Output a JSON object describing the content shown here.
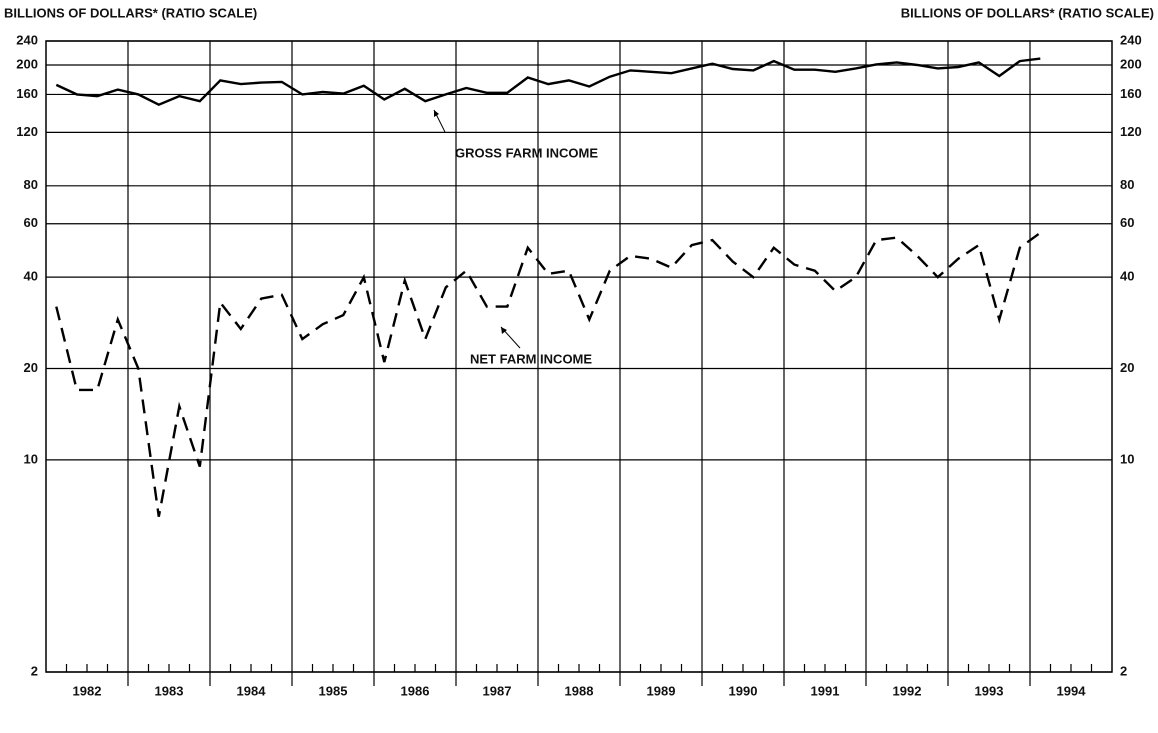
{
  "chart_data": {
    "type": "line",
    "y_label": "BILLIONS OF DOLLARS* (RATIO SCALE)",
    "y2_label": "BILLIONS OF DOLLARS* (RATIO SCALE)",
    "log_scale": true,
    "grid": true,
    "ylim": [
      2,
      240
    ],
    "yticks": [
      2,
      10,
      20,
      40,
      60,
      80,
      120,
      160,
      200,
      240
    ],
    "year_labels": [
      "1982",
      "1983",
      "1984",
      "1985",
      "1986",
      "1987",
      "1988",
      "1989",
      "1990",
      "1991",
      "1992",
      "1993",
      "1994"
    ],
    "categories": [
      null,
      null,
      null,
      null,
      null,
      null,
      null,
      null,
      null,
      null,
      null,
      null,
      null,
      null,
      null,
      null,
      null,
      null,
      null,
      null,
      null,
      null,
      null,
      null,
      null,
      null,
      null,
      null,
      null,
      null,
      null,
      null,
      null,
      null,
      null,
      null,
      null,
      null,
      null,
      null,
      null,
      null,
      null,
      null,
      null,
      null,
      null,
      null,
      null
    ],
    "series": [
      {
        "name": "GROSS FARM INCOME",
        "color": "#000000",
        "dashed": false,
        "values": [
          172,
          160,
          158,
          166,
          160,
          148,
          158,
          152,
          178,
          173,
          175,
          176,
          160,
          163,
          161,
          171,
          154,
          167,
          152,
          160,
          168,
          162,
          162,
          182,
          173,
          178,
          170,
          183,
          192,
          190,
          188,
          195,
          202,
          194,
          192,
          206,
          193,
          193,
          190,
          195,
          201,
          204,
          200,
          195,
          197,
          204,
          184,
          206,
          210
        ]
      },
      {
        "name": "NET FARM INCOME",
        "color": "#000000",
        "dashed": true,
        "values": [
          32,
          17,
          17,
          29,
          20,
          6.5,
          15,
          9.5,
          33,
          27,
          34,
          35,
          25,
          28,
          30,
          40,
          21,
          39,
          25,
          37,
          42,
          32,
          32,
          50,
          41,
          42,
          29,
          42,
          47,
          46,
          43,
          51,
          53,
          45,
          40,
          50,
          44,
          42,
          36,
          40,
          53,
          54,
          47,
          40,
          46,
          51,
          29,
          50,
          56
        ]
      }
    ]
  }
}
